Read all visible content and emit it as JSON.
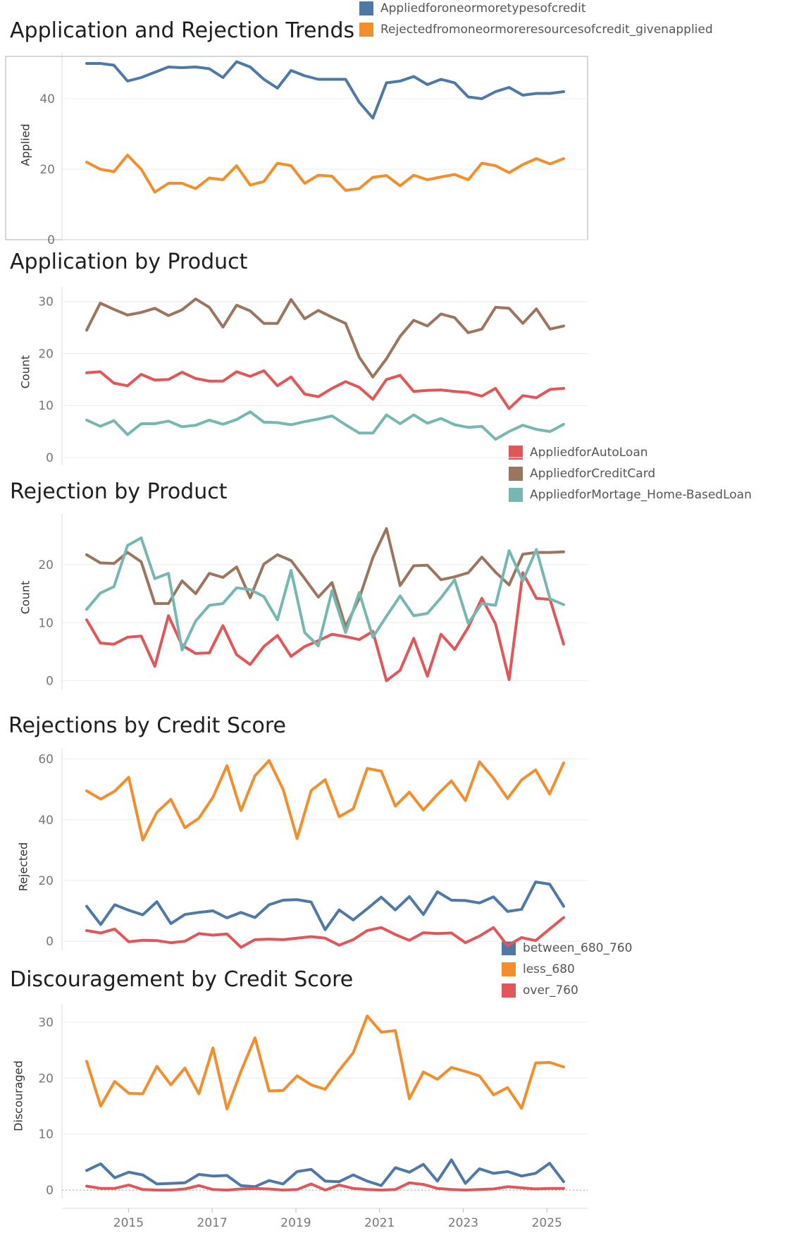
{
  "colors": {
    "blue": "#4e79a7",
    "orange": "#f28e2b",
    "red": "#e15759",
    "brown": "#9c755f",
    "teal": "#76b7b2"
  },
  "x_axis": {
    "ticks": [
      2015,
      2017,
      2019,
      2021,
      2023,
      2025
    ],
    "tick_labels": [
      "2015",
      "2017",
      "2019",
      "2021",
      "2023",
      "2025"
    ]
  },
  "chart_data": [
    {
      "type": "line",
      "title": "Application and Rejection Trends",
      "ylabel": "Applied",
      "ylim": [
        0,
        52
      ],
      "yticks": [
        0,
        20,
        40
      ],
      "ytick_labels": [
        "0",
        "20",
        "40"
      ],
      "legend": [
        {
          "name": "Appliedforoneormoretypesofcredit",
          "color": "#4e79a7"
        },
        {
          "name": "Rejectedfromoneormoreresourcesofcredit_givenapplied",
          "color": "#f28e2b"
        }
      ],
      "series": [
        {
          "name": "Appliedforoneormoretypesofcredit",
          "color": "#4e79a7",
          "values": [
            50,
            50,
            49.5,
            45,
            46,
            47.5,
            49,
            48.8,
            49,
            48.5,
            46,
            50.5,
            49,
            45.5,
            43,
            48,
            46.5,
            45.5,
            45.5,
            45.5,
            39,
            34.5,
            44.5,
            45,
            46.3,
            44,
            45.5,
            44.5,
            40.5,
            40,
            42,
            43.2,
            41,
            41.5,
            41.5,
            42
          ]
        },
        {
          "name": "Rejectedfromoneormoreresourcesofcredit_givenapplied",
          "color": "#f28e2b",
          "values": [
            22,
            20,
            19.3,
            24,
            20,
            13.5,
            16,
            16,
            14.5,
            17.5,
            17,
            21,
            15.5,
            16.5,
            21.7,
            21,
            16,
            18.3,
            18,
            14,
            14.5,
            17.7,
            18.2,
            15.3,
            18.3,
            17,
            17.8,
            18.5,
            17,
            21.7,
            21,
            19,
            21.3,
            23,
            21.5,
            23
          ]
        }
      ]
    },
    {
      "type": "line",
      "title": "Application by Product",
      "ylabel": "Count",
      "ylim": [
        -1.5,
        32
      ],
      "yticks": [
        0,
        10,
        20,
        30
      ],
      "ytick_labels": [
        "0",
        "10",
        "20",
        "30"
      ],
      "legend": [
        {
          "name": "AppliedforAutoLoan",
          "color": "#e15759"
        },
        {
          "name": "AppliedforCreditCard",
          "color": "#9c755f"
        },
        {
          "name": "AppliedforMortage_Home-BasedLoan",
          "color": "#76b7b2"
        }
      ],
      "series": [
        {
          "name": "AppliedforAutoLoan",
          "color": "#e15759",
          "values": [
            16.3,
            16.5,
            14.3,
            13.8,
            16,
            14.9,
            15,
            16.4,
            15.2,
            14.7,
            14.7,
            16.5,
            15.6,
            16.7,
            13.8,
            15.5,
            12.2,
            11.7,
            13.3,
            14.6,
            13.5,
            11.2,
            15,
            15.8,
            12.7,
            12.9,
            13,
            12.7,
            12.5,
            11.8,
            13.3,
            9.4,
            11.9,
            11.5,
            13.1,
            13.3
          ]
        },
        {
          "name": "AppliedforCreditCard",
          "color": "#9c755f",
          "values": [
            24.5,
            29.7,
            28.5,
            27.4,
            27.9,
            28.7,
            27.3,
            28.4,
            30.5,
            28.9,
            25.1,
            29.3,
            28.2,
            25.8,
            25.8,
            30.4,
            26.7,
            28.3,
            27,
            25.8,
            19.3,
            15.5,
            19,
            23.3,
            26.4,
            25.3,
            27.6,
            26.9,
            24,
            24.7,
            28.9,
            28.7,
            25.8,
            28.6,
            24.7,
            25.3
          ]
        },
        {
          "name": "AppliedforMortage_Home-BasedLoan",
          "color": "#76b7b2",
          "values": [
            7.2,
            6,
            7.1,
            4.4,
            6.5,
            6.5,
            7,
            5.9,
            6.2,
            7.2,
            6.4,
            7.3,
            8.8,
            6.8,
            6.7,
            6.3,
            6.9,
            7.4,
            8,
            6.3,
            4.7,
            4.7,
            8.2,
            6.5,
            8.2,
            6.6,
            7.5,
            6.3,
            5.8,
            6,
            3.5,
            5,
            6.2,
            5.4,
            5,
            6.4
          ]
        }
      ]
    },
    {
      "type": "line",
      "title": "Rejection by Product",
      "ylabel": "Count",
      "ylim": [
        -1.5,
        28
      ],
      "yticks": [
        0,
        10,
        20
      ],
      "ytick_labels": [
        "0",
        "10",
        "20"
      ],
      "series": [
        {
          "name": "AppliedforAutoLoan",
          "color": "#e15759",
          "values": [
            10.5,
            6.5,
            6.3,
            7.5,
            7.7,
            2.5,
            11.2,
            6.1,
            4.7,
            4.8,
            9.5,
            4.5,
            2.8,
            5.9,
            7.8,
            4.2,
            5.9,
            6.9,
            8,
            7.6,
            7.1,
            8.5,
            0,
            1.8,
            7.3,
            0.8,
            8,
            5.4,
            9.2,
            14.2,
            9.8,
            0.2,
            18.6,
            14.2,
            14,
            6.3
          ]
        },
        {
          "name": "AppliedforCreditCard",
          "color": "#9c755f",
          "values": [
            21.7,
            20.3,
            20.2,
            22.1,
            20.5,
            13.3,
            13.3,
            17.2,
            15,
            18.5,
            17.8,
            19.6,
            14.3,
            20.1,
            21.7,
            20.7,
            17.6,
            14.4,
            16.9,
            9.3,
            14.2,
            21.2,
            26.2,
            16.4,
            19.8,
            19.9,
            17.4,
            17.9,
            18.6,
            21.3,
            18.7,
            16.5,
            21.8,
            22.1,
            22.1,
            22.2
          ]
        },
        {
          "name": "AppliedforMortage_Home-BasedLoan",
          "color": "#76b7b2",
          "values": [
            12.3,
            15.1,
            16.2,
            23.3,
            24.6,
            17.6,
            18.5,
            5.3,
            10.3,
            13,
            13.3,
            16,
            15.7,
            14.5,
            10.5,
            19,
            8.3,
            6,
            15.5,
            8.3,
            15.2,
            7.5,
            11.1,
            14.6,
            11.2,
            11.6,
            14.3,
            17.4,
            9.9,
            13.3,
            13,
            22.4,
            17.2,
            22.6,
            14.1,
            13.1
          ]
        }
      ]
    },
    {
      "type": "line",
      "title": "Rejections by Credit Score",
      "ylabel": "Rejected",
      "ylim": [
        -3,
        62
      ],
      "yticks": [
        0,
        20,
        40,
        60
      ],
      "ytick_labels": [
        "0",
        "20",
        "40",
        "60"
      ],
      "legend": [
        {
          "name": "between_680_760",
          "color": "#4e79a7"
        },
        {
          "name": "less_680",
          "color": "#f28e2b"
        },
        {
          "name": "over_760",
          "color": "#e15759"
        }
      ],
      "series": [
        {
          "name": "between_680_760",
          "color": "#4e79a7",
          "values": [
            11.5,
            5.5,
            12,
            10.2,
            8.7,
            13,
            5.8,
            8.8,
            9.5,
            10,
            7.7,
            9.5,
            7.8,
            12,
            13.5,
            13.7,
            12.9,
            3.8,
            10.3,
            7,
            10.7,
            14.5,
            10.3,
            14.7,
            8.8,
            16.3,
            13.5,
            13.4,
            12.6,
            14.6,
            9.8,
            10.5,
            19.5,
            18.8,
            11.5
          ]
        },
        {
          "name": "less_680",
          "color": "#f28e2b",
          "values": [
            49.5,
            46.8,
            49.4,
            54,
            33.3,
            42.4,
            46.7,
            37.4,
            40.5,
            47.4,
            57.8,
            43,
            54.5,
            59.5,
            50,
            33.8,
            49.6,
            53.2,
            41,
            43.6,
            56.9,
            56,
            44.5,
            49.1,
            43.2,
            48.3,
            52.8,
            46.3,
            59.1,
            53.7,
            47,
            53.1,
            56.4,
            48.5,
            58.7
          ]
        },
        {
          "name": "over_760",
          "color": "#e15759",
          "values": [
            3.5,
            2.7,
            4,
            -0.2,
            0.3,
            0.2,
            -0.5,
            0,
            2.5,
            2,
            2.4,
            -2,
            0.5,
            0.7,
            0.5,
            1,
            1.5,
            1,
            -1.3,
            0.5,
            3.5,
            4.5,
            2.2,
            0.3,
            2.8,
            2.5,
            2.7,
            -0.5,
            1.7,
            4.5,
            -1.5,
            1.2,
            0.2,
            4,
            7.8
          ]
        }
      ]
    },
    {
      "type": "line",
      "title": "Discouragement by Credit Score",
      "ylabel": "Discouraged",
      "ylim": [
        -1.5,
        32.5
      ],
      "yticks": [
        0,
        10,
        20,
        30
      ],
      "ytick_labels": [
        "0",
        "10",
        "20",
        "30"
      ],
      "series": [
        {
          "name": "between_680_760",
          "color": "#4e79a7",
          "values": [
            3.5,
            4.7,
            2.2,
            3.2,
            2.7,
            1.1,
            1.2,
            1.3,
            2.8,
            2.5,
            2.6,
            0.8,
            0.6,
            1.7,
            1.1,
            3.3,
            3.7,
            1.6,
            1.5,
            2.7,
            1.6,
            0.8,
            4,
            3.2,
            4.6,
            1.6,
            5.4,
            1.2,
            3.8,
            3,
            3.3,
            2.5,
            3,
            4.8,
            1.5
          ]
        },
        {
          "name": "less_680",
          "color": "#f28e2b",
          "values": [
            23,
            15,
            19.4,
            17.3,
            17.2,
            22.1,
            18.8,
            21.8,
            17.2,
            25.4,
            14.5,
            21.2,
            27.2,
            17.7,
            17.8,
            20.4,
            18.8,
            18,
            21.4,
            24.5,
            31.1,
            28.2,
            28.5,
            16.3,
            21.1,
            19.8,
            21.9,
            21.2,
            20.4,
            17,
            18.3,
            14.6,
            22.7,
            22.8,
            22
          ]
        },
        {
          "name": "over_760",
          "color": "#e15759",
          "values": [
            0.7,
            0.3,
            0.3,
            0.9,
            0.1,
            0,
            0,
            0.2,
            0.8,
            0.1,
            0,
            0.2,
            0.3,
            0.2,
            0,
            0.1,
            1.1,
            0,
            0.9,
            0.3,
            0.1,
            0,
            0.1,
            1.3,
            1,
            0.3,
            0.1,
            0,
            0.1,
            0.2,
            0.6,
            0.4,
            0.2,
            0.3,
            0.3
          ]
        }
      ]
    }
  ]
}
